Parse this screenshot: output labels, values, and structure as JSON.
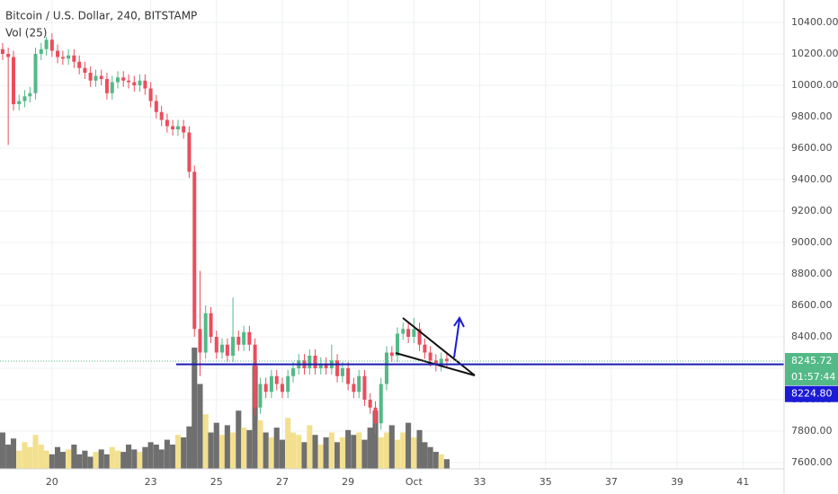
{
  "chart_data": {
    "type": "candlestick",
    "title": "Bitcoin / U.S. Dollar, 240, BITSTAMP",
    "indicator": "Vol (25)",
    "countdown": "01:57:44",
    "horizontal_line": {
      "value": 8224.8,
      "label": "8224.80"
    },
    "up_color": "#53b987",
    "down_color": "#eb4d5c",
    "volume_up_color": "#f3e08f",
    "volume_down_color": "#6f6f6f",
    "xlim": [
      18.42,
      42.25
    ],
    "xticks": [
      20,
      23,
      25,
      27,
      29,
      {
        "value": 31,
        "label": "Oct"
      },
      33,
      35,
      37,
      39,
      41
    ],
    "ylim": [
      7600,
      10400
    ],
    "yticks": [
      {
        "value": 10400,
        "label": "10400.00"
      },
      {
        "value": 10200,
        "label": "10200.00"
      },
      {
        "value": 10000,
        "label": "10000.00"
      },
      {
        "value": 9800,
        "label": "9800.00"
      },
      {
        "value": 9600,
        "label": "9600.00"
      },
      {
        "value": 9400,
        "label": "9400.00"
      },
      {
        "value": 9200,
        "label": "9200.00"
      },
      {
        "value": 9000,
        "label": "9000.00"
      },
      {
        "value": 8800,
        "label": "8800.00"
      },
      {
        "value": 8600,
        "label": "8600.00"
      },
      {
        "value": 8400,
        "label": "8400.00"
      },
      {
        "value": 8200,
        "label": "8200.00"
      },
      {
        "value": 8000,
        "label": "8000.00"
      },
      {
        "value": 7800,
        "label": "7800.00"
      },
      {
        "value": 7600,
        "label": "7600.00"
      }
    ],
    "grid": true,
    "candles": {
      "x": [
        18.5,
        18.67,
        18.83,
        19,
        19.17,
        19.33,
        19.5,
        19.67,
        19.83,
        20,
        20.17,
        20.33,
        20.5,
        20.67,
        20.83,
        21,
        21.17,
        21.33,
        21.5,
        21.67,
        21.83,
        22,
        22.17,
        22.33,
        22.5,
        22.67,
        22.83,
        23,
        23.17,
        23.33,
        23.5,
        23.67,
        23.83,
        24,
        24.17,
        24.33,
        24.5,
        24.67,
        24.83,
        25,
        25.17,
        25.33,
        25.5,
        25.67,
        25.83,
        26,
        26.17,
        26.33,
        26.5,
        26.67,
        26.83,
        27,
        27.17,
        27.33,
        27.5,
        27.67,
        27.83,
        28,
        28.17,
        28.33,
        28.5,
        28.67,
        28.83,
        29,
        29.17,
        29.33,
        29.5,
        29.67,
        29.83,
        30,
        30.17,
        30.33,
        30.5,
        30.67,
        30.83,
        31,
        31.17,
        31.33,
        31.5,
        31.67,
        31.83,
        32
      ],
      "open": [
        10230,
        10200,
        10180,
        9880,
        9900,
        9930,
        9950,
        10200,
        10230,
        10290,
        10220,
        10180,
        10170,
        10190,
        10150,
        10110,
        10080,
        10030,
        10060,
        10040,
        9950,
        10020,
        10050,
        10030,
        10020,
        10000,
        10030,
        9980,
        9900,
        9830,
        9780,
        9740,
        9720,
        9740,
        9700,
        9450,
        8450,
        8300,
        8550,
        8400,
        8300,
        8350,
        8280,
        8400,
        8350,
        8430,
        8350,
        7950,
        8100,
        8050,
        8150,
        8100,
        8050,
        8150,
        8200,
        8250,
        8200,
        8280,
        8200,
        8230,
        8200,
        8250,
        8150,
        8200,
        8100,
        8050,
        8150,
        8000,
        7950,
        7850,
        8100,
        8300,
        8280,
        8420,
        8450,
        8400,
        8450,
        8350,
        8300,
        8250,
        8220,
        8260
      ],
      "high": [
        10270,
        10240,
        10220,
        9940,
        9970,
        9990,
        10240,
        10270,
        10310,
        10330,
        10260,
        10220,
        10230,
        10230,
        10190,
        10150,
        10120,
        10100,
        10100,
        10080,
        10060,
        10090,
        10090,
        10070,
        10060,
        10070,
        10070,
        10020,
        9940,
        9870,
        9820,
        9780,
        9780,
        9780,
        9740,
        9490,
        8820,
        8600,
        8590,
        8440,
        8390,
        8390,
        8650,
        8440,
        8470,
        8470,
        8390,
        8140,
        8140,
        8190,
        8190,
        8140,
        8190,
        8240,
        8290,
        8290,
        8320,
        8320,
        8270,
        8270,
        8350,
        8290,
        8240,
        8240,
        8140,
        8190,
        8190,
        8040,
        7990,
        8140,
        8340,
        8340,
        8460,
        8490,
        8490,
        8520,
        8490,
        8390,
        8340,
        8290,
        8300,
        8300
      ],
      "low": [
        10160,
        9620,
        9840,
        9840,
        9860,
        9890,
        9910,
        10160,
        10190,
        10180,
        10140,
        10130,
        10130,
        10110,
        10070,
        10040,
        9990,
        9990,
        10000,
        9910,
        9910,
        9980,
        9990,
        9980,
        9960,
        9960,
        9940,
        9860,
        9790,
        9740,
        9700,
        9680,
        9680,
        9660,
        9410,
        8400,
        8150,
        8260,
        8360,
        8260,
        8260,
        8240,
        8240,
        8310,
        8310,
        8310,
        7900,
        7910,
        8010,
        8010,
        8060,
        8010,
        8010,
        8110,
        8160,
        8160,
        8160,
        8160,
        8160,
        8160,
        8160,
        8110,
        8110,
        8060,
        8010,
        8010,
        7960,
        7910,
        7780,
        7810,
        8060,
        8240,
        8240,
        8380,
        8360,
        8360,
        8310,
        8260,
        8210,
        8180,
        8180,
        8200
      ],
      "close": [
        10200,
        10180,
        9880,
        9900,
        9930,
        9950,
        10200,
        10230,
        10290,
        10220,
        10180,
        10170,
        10190,
        10150,
        10110,
        10080,
        10030,
        10060,
        10040,
        9950,
        10020,
        10050,
        10030,
        10020,
        10000,
        10030,
        9980,
        9900,
        9830,
        9780,
        9740,
        9720,
        9740,
        9700,
        9450,
        8450,
        8300,
        8550,
        8400,
        8300,
        8350,
        8280,
        8400,
        8350,
        8430,
        8350,
        7950,
        8100,
        8050,
        8150,
        8100,
        8050,
        8150,
        8200,
        8250,
        8200,
        8280,
        8200,
        8230,
        8200,
        8250,
        8150,
        8200,
        8100,
        8050,
        8150,
        8000,
        7950,
        7850,
        8100,
        8300,
        8280,
        8420,
        8450,
        8400,
        8450,
        8350,
        8300,
        8250,
        8220,
        8260,
        8245.72
      ],
      "volume": [
        30,
        20,
        25,
        15,
        22,
        18,
        28,
        20,
        15,
        12,
        18,
        14,
        16,
        20,
        12,
        15,
        10,
        14,
        16,
        12,
        18,
        15,
        14,
        20,
        16,
        14,
        18,
        22,
        20,
        16,
        24,
        20,
        28,
        26,
        35,
        100,
        70,
        45,
        30,
        38,
        28,
        36,
        30,
        48,
        34,
        32,
        85,
        40,
        30,
        26,
        34,
        24,
        42,
        30,
        28,
        22,
        36,
        28,
        20,
        26,
        30,
        22,
        26,
        32,
        28,
        30,
        24,
        34,
        48,
        26,
        30,
        36,
        24,
        30,
        38,
        26,
        32,
        22,
        18,
        14,
        12,
        8
      ]
    }
  }
}
